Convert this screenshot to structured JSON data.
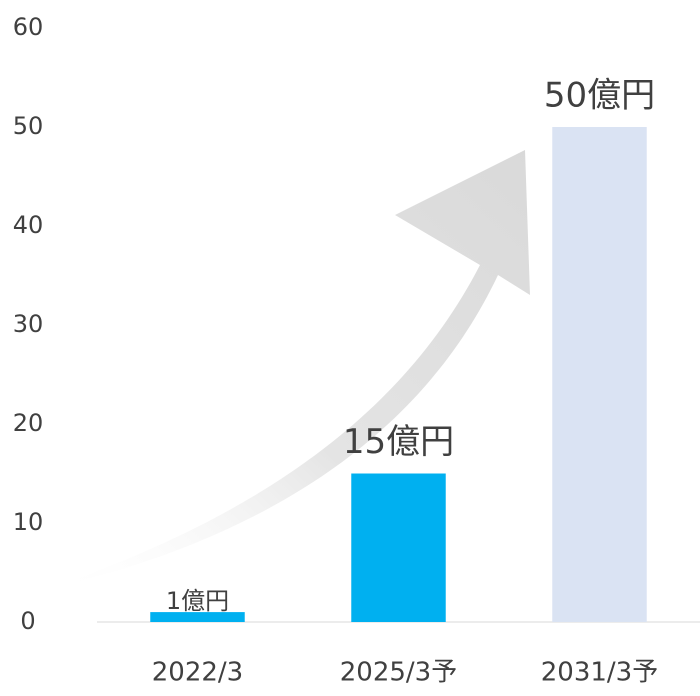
{
  "chart_data": {
    "type": "bar",
    "categories": [
      "2022/3",
      "2025/3予",
      "2031/3予"
    ],
    "values": [
      1,
      15,
      50
    ],
    "value_labels": [
      "1億円",
      "15億円",
      "50億円"
    ],
    "colors": [
      "#00b0f0",
      "#00b0f0",
      "#dae3f3"
    ],
    "ylim": [
      0,
      60
    ],
    "yticks": [
      0,
      10,
      20,
      30,
      40,
      50,
      60
    ],
    "grid": false
  }
}
